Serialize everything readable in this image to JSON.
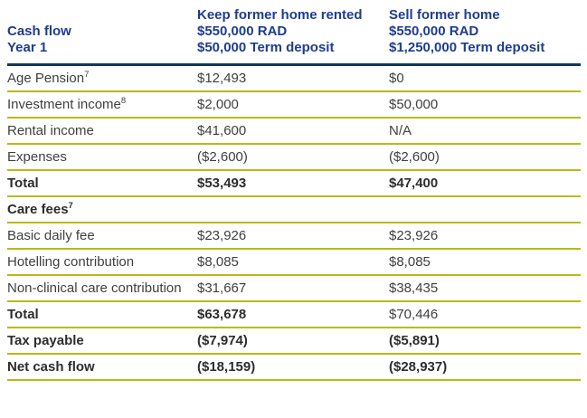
{
  "colors": {
    "header_text": "#1F3D8F",
    "header_rule": "#0B3A5D",
    "row_rule": "#B9BA16",
    "body_text": "#3F3F3F",
    "bold_text": "#2D2D2D",
    "background": "#FFFFFF"
  },
  "header": {
    "col1": {
      "line1": "Cash flow",
      "line2": "Year 1"
    },
    "col2": {
      "line1": "Keep former home rented",
      "line2": "$550,000 RAD",
      "line3": "$50,000 Term deposit"
    },
    "col3": {
      "line1": "Sell former home",
      "line2": "$550,000 RAD",
      "line3": "$1,250,000 Term deposit"
    }
  },
  "rows": [
    {
      "label": "Age Pension",
      "sup": "7",
      "col2": "$12,493",
      "col3": "$0"
    },
    {
      "label": "Investment income",
      "sup": "8",
      "col2": "$2,000",
      "col3": "$50,000"
    },
    {
      "label": "Rental income",
      "col2": "$41,600",
      "col3": "N/A"
    },
    {
      "label": "Expenses",
      "col2": "($2,600)",
      "col3": "($2,600)"
    },
    {
      "label": "Total",
      "col2": "$53,493",
      "col3": "$47,400"
    },
    {
      "label": "Care fees",
      "sup": "7",
      "col2": "",
      "col3": ""
    },
    {
      "label": "Basic daily fee",
      "col2": "$23,926",
      "col3": "$23,926"
    },
    {
      "label": "Hotelling contribution",
      "col2": "$8,085",
      "col3": "$8,085"
    },
    {
      "label": "Non-clinical care contribution",
      "col2": "$31,667",
      "col3": "$38,435"
    },
    {
      "label": "Total",
      "col2": "$63,678",
      "col3": "$70,446"
    },
    {
      "label": "Tax payable",
      "col2": "($7,974)",
      "col3": "($5,891)"
    },
    {
      "label": "Net cash flow",
      "col2": "($18,159)",
      "col3": "($28,937)"
    }
  ]
}
